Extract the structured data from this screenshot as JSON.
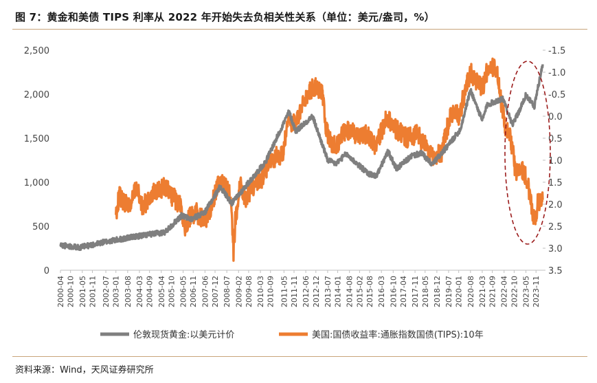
{
  "title": "图 7：黄金和美债 TIPS 利率从  2022  年开始失去负相关性关系（单位：美元/盎司，%）",
  "source": "资料来源：Wind，天风证券研究所",
  "colors": {
    "gold": "#7f7f7f",
    "tips": "#ed7d31",
    "highlight": "#9b1c1c",
    "axis": "#bfbfbf",
    "rule": "#c8a47a"
  },
  "chart_data": {
    "type": "line",
    "left_axis": {
      "ticks": [
        "0",
        "500",
        "1,000",
        "1,500",
        "2,000",
        "2,500"
      ],
      "ylim": [
        0,
        2500
      ]
    },
    "right_axis": {
      "ticks": [
        "-1.5",
        "-1.0",
        "-0.5",
        "0.0",
        "0.5",
        "1.0",
        "1.5",
        "2.0",
        "2.5",
        "3.0",
        "3.5"
      ],
      "ylim": [
        3.5,
        -1.5
      ],
      "inverted": true
    },
    "x_ticks": [
      "2000-04",
      "2000-10",
      "2001-05",
      "2001-11",
      "2002-07",
      "2003-01",
      "2003-08",
      "2004-03",
      "2004-09",
      "2005-04",
      "2005-10",
      "2006-05",
      "2006-11",
      "2007-06",
      "2007-12",
      "2008-07",
      "2009-02",
      "2009-08",
      "2010-03",
      "2010-09",
      "2011-05",
      "2011-11",
      "2012-06",
      "2012-12",
      "2013-07",
      "2014-01",
      "2014-08",
      "2015-02",
      "2015-08",
      "2016-03",
      "2016-10",
      "2017-04",
      "2017-11",
      "2018-05",
      "2018-12",
      "2019-07",
      "2020-01",
      "2020-08",
      "2021-03",
      "2021-09",
      "2022-04",
      "2022-10",
      "2023-05",
      "2023-11"
    ],
    "x_range": [
      "2000-04",
      "2024-03"
    ],
    "series": [
      {
        "name": "伦敦现货黄金:以美元计价",
        "axis": "left",
        "x": [
          "2000-04",
          "2001-04",
          "2002-06",
          "2003-06",
          "2004-06",
          "2005-06",
          "2006-04",
          "2006-10",
          "2007-06",
          "2008-03",
          "2008-10",
          "2009-06",
          "2010-06",
          "2011-08",
          "2011-12",
          "2012-10",
          "2013-04",
          "2013-07",
          "2013-12",
          "2014-06",
          "2015-07",
          "2015-12",
          "2016-07",
          "2016-12",
          "2017-09",
          "2018-03",
          "2018-09",
          "2019-06",
          "2020-02",
          "2020-08",
          "2021-03",
          "2021-06",
          "2022-03",
          "2022-06",
          "2022-09",
          "2023-02",
          "2023-05",
          "2023-10",
          "2023-12",
          "2024-03"
        ],
        "values": [
          285,
          260,
          320,
          360,
          400,
          430,
          620,
          580,
          660,
          950,
          760,
          950,
          1230,
          1800,
          1580,
          1750,
          1420,
          1250,
          1210,
          1320,
          1100,
          1070,
          1350,
          1150,
          1300,
          1330,
          1200,
          1400,
          1600,
          2050,
          1700,
          1880,
          1950,
          1820,
          1650,
          1850,
          1990,
          1860,
          2060,
          2340
        ]
      },
      {
        "name": "美国:国债收益率:通胀指数国债(TIPS):10年",
        "axis": "right",
        "x": [
          "2003-01",
          "2003-03",
          "2003-06",
          "2003-10",
          "2004-01",
          "2004-05",
          "2004-09",
          "2005-01",
          "2005-06",
          "2005-10",
          "2006-03",
          "2006-06",
          "2006-09",
          "2007-01",
          "2007-06",
          "2007-10",
          "2008-01",
          "2008-05",
          "2008-09",
          "2008-11",
          "2008-12",
          "2009-03",
          "2009-06",
          "2009-12",
          "2010-04",
          "2010-08",
          "2011-01",
          "2011-04",
          "2011-08",
          "2011-12",
          "2012-04",
          "2012-07",
          "2012-12",
          "2013-04",
          "2013-06",
          "2013-09",
          "2013-12",
          "2014-06",
          "2014-12",
          "2015-06",
          "2015-12",
          "2016-06",
          "2016-12",
          "2017-06",
          "2017-12",
          "2018-06",
          "2018-10",
          "2019-03",
          "2019-06",
          "2019-09",
          "2020-01",
          "2020-03",
          "2020-08",
          "2021-03",
          "2021-07",
          "2021-12",
          "2022-02",
          "2022-05",
          "2022-08",
          "2022-11",
          "2023-03",
          "2023-06",
          "2023-10",
          "2023-12",
          "2024-03"
        ],
        "values": [
          2.2,
          1.8,
          2.0,
          2.0,
          1.6,
          2.1,
          1.8,
          1.7,
          1.6,
          1.8,
          2.0,
          2.5,
          2.3,
          2.2,
          2.4,
          2.0,
          1.6,
          1.5,
          1.8,
          3.1,
          2.4,
          1.5,
          1.9,
          1.5,
          1.4,
          1.1,
          0.9,
          0.9,
          0.1,
          0.2,
          -0.2,
          -0.5,
          -0.7,
          -0.5,
          0.3,
          0.6,
          0.7,
          0.3,
          0.4,
          0.4,
          0.7,
          0.0,
          0.3,
          0.5,
          0.4,
          0.7,
          1.0,
          0.8,
          0.3,
          -0.1,
          0.0,
          -0.3,
          -1.0,
          -0.6,
          -1.2,
          -1.0,
          -0.4,
          0.3,
          0.5,
          1.3,
          1.2,
          1.5,
          2.4,
          2.0,
          1.9
        ]
      }
    ],
    "legend_position": "bottom"
  }
}
